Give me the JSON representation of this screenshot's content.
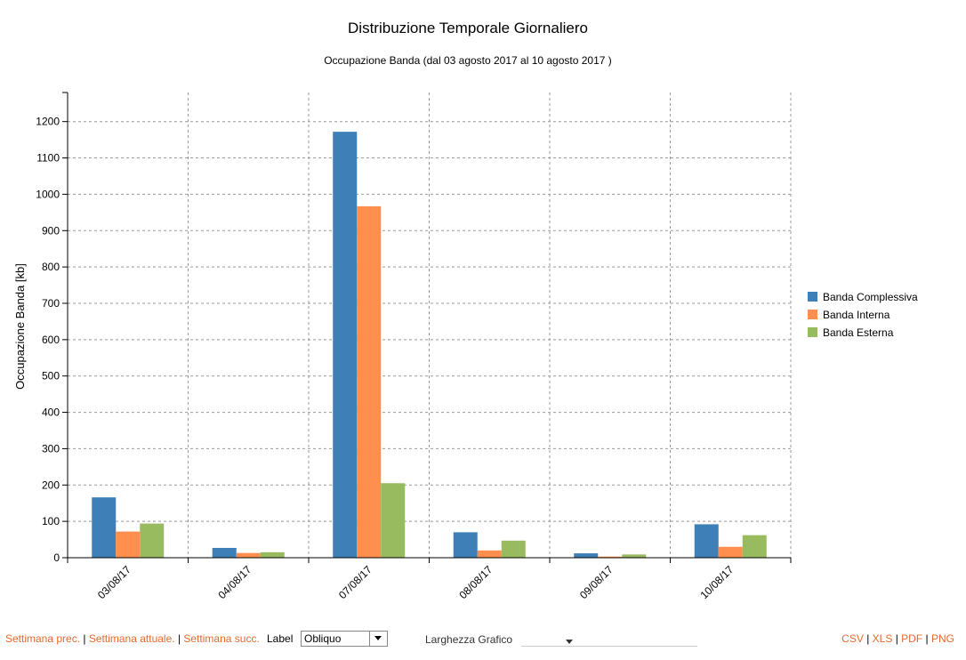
{
  "chart_data": {
    "type": "bar",
    "title": "Distribuzione Temporale Giornaliero",
    "subtitle": "Occupazione Banda (dal 03 agosto 2017 al 10 agosto 2017 )",
    "xlabel": "",
    "ylabel": "Occupazione Banda [kb]",
    "ylim": [
      0,
      1280
    ],
    "yticks": [
      0,
      100,
      200,
      300,
      400,
      500,
      600,
      700,
      800,
      900,
      1000,
      1100,
      1200
    ],
    "grid": true,
    "legend_position": "right",
    "categories": [
      "03/08/17",
      "04/08/17",
      "07/08/17",
      "08/08/17",
      "09/08/17",
      "10/08/17"
    ],
    "series": [
      {
        "name": "Banda Complessiva",
        "color": "#3d7fb6",
        "values": [
          166,
          27,
          1172,
          70,
          12,
          92
        ]
      },
      {
        "name": "Banda Interna",
        "color": "#ff8f4f",
        "values": [
          72,
          13,
          967,
          20,
          3,
          30
        ]
      },
      {
        "name": "Banda Esterna",
        "color": "#99bb60",
        "values": [
          94,
          15,
          205,
          47,
          9,
          62
        ]
      }
    ]
  },
  "footer": {
    "nav": {
      "prev": "Settimana prec.",
      "current": "Settimana attuale.",
      "next": "Settimana succ.",
      "separator": "|"
    },
    "label_caption": "Label",
    "label_value": "Obliquo",
    "width_caption": "Larghezza Grafico",
    "exports": [
      "CSV",
      "XLS",
      "PDF",
      "PNG"
    ]
  }
}
